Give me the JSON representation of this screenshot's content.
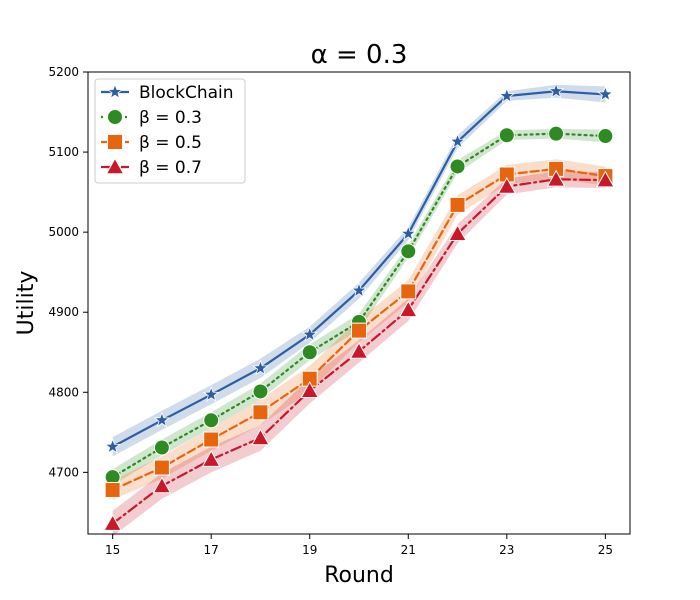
{
  "chart_data": {
    "type": "line",
    "title": "α = 0.3",
    "xlabel": "Round",
    "ylabel": "Utility",
    "x": [
      15,
      16,
      17,
      18,
      19,
      20,
      21,
      22,
      23,
      24,
      25
    ],
    "xticks": [
      15,
      17,
      19,
      21,
      23,
      25
    ],
    "yticks": [
      4700,
      4800,
      4900,
      5000,
      5100,
      5200
    ],
    "xlim": [
      14.5,
      25.5
    ],
    "ylim": [
      4623,
      5200
    ],
    "legend_position": "top-left",
    "series": [
      {
        "name": "BlockChain",
        "color": "#2b5fa4",
        "linestyle": "solid",
        "marker": "star",
        "values": [
          4732,
          4765,
          4797,
          4830,
          4872,
          4927,
          4998,
          5113,
          5170,
          5176,
          5172
        ],
        "band": [
          12,
          12,
          12,
          12,
          10,
          10,
          8,
          8,
          6,
          8,
          10
        ]
      },
      {
        "name": "β = 0.3",
        "color": "#2e8b22",
        "linestyle": "dotted",
        "marker": "circle",
        "values": [
          4694,
          4731,
          4765,
          4801,
          4850,
          4888,
          4976,
          5082,
          5121,
          5123,
          5120
        ],
        "band": [
          10,
          10,
          10,
          10,
          10,
          10,
          8,
          8,
          6,
          6,
          8
        ]
      },
      {
        "name": "β = 0.5",
        "color": "#e8650f",
        "linestyle": "dashed",
        "marker": "square",
        "values": [
          4678,
          4706,
          4741,
          4775,
          4817,
          4877,
          4926,
          5034,
          5072,
          5079,
          5070
        ],
        "band": [
          12,
          14,
          14,
          16,
          16,
          14,
          14,
          12,
          12,
          12,
          12
        ]
      },
      {
        "name": "β = 0.7",
        "color": "#c8182a",
        "linestyle": "dashdot",
        "marker": "triangle",
        "values": [
          4636,
          4683,
          4716,
          4743,
          4802,
          4851,
          4903,
          4998,
          5057,
          5066,
          5065
        ],
        "band": [
          16,
          16,
          16,
          16,
          16,
          14,
          14,
          12,
          10,
          10,
          10
        ]
      }
    ]
  }
}
